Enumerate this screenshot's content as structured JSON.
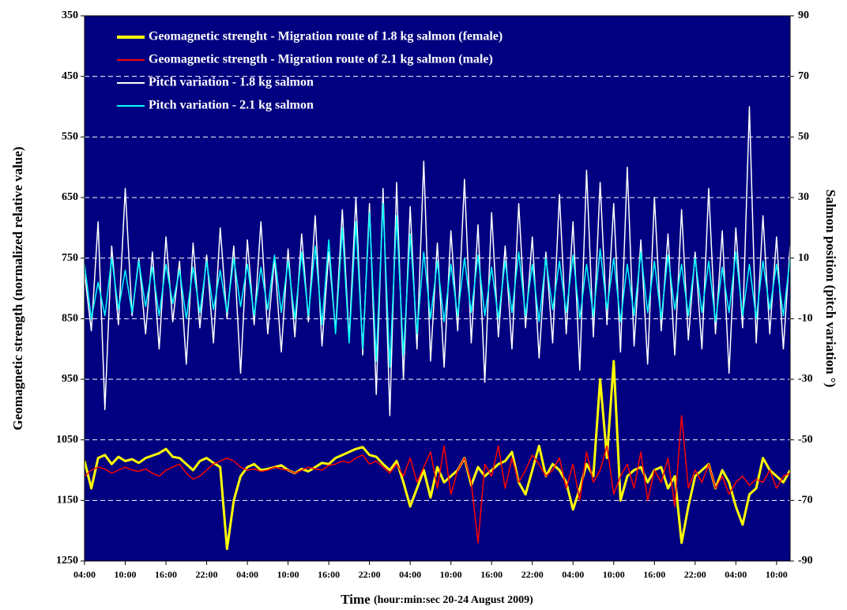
{
  "chart_data": {
    "type": "line",
    "ylabel": "Geomagnetic strength (normalized relative value)",
    "y2label": "Salmon position (pitch variation °)",
    "xlabel": "Time",
    "xlabel_detail": "(hour:min:sec  20-24 August 2009)",
    "background": "#000080",
    "grid": true,
    "legend": "upper-left",
    "xlim": [
      0,
      104
    ],
    "xticks": [
      {
        "value": 0,
        "label": "04:00"
      },
      {
        "value": 6,
        "label": "10:00"
      },
      {
        "value": 12,
        "label": "16:00"
      },
      {
        "value": 18,
        "label": "22:00"
      },
      {
        "value": 24,
        "label": "04:00"
      },
      {
        "value": 30,
        "label": "10:00"
      },
      {
        "value": 36,
        "label": "16:00"
      },
      {
        "value": 42,
        "label": "22:00"
      },
      {
        "value": 48,
        "label": "04:00"
      },
      {
        "value": 54,
        "label": "10:00"
      },
      {
        "value": 60,
        "label": "16:00"
      },
      {
        "value": 66,
        "label": "22:00"
      },
      {
        "value": 72,
        "label": "04:00"
      },
      {
        "value": 78,
        "label": "10:00"
      },
      {
        "value": 84,
        "label": "16:00"
      },
      {
        "value": 90,
        "label": "22:00"
      },
      {
        "value": 96,
        "label": "04:00"
      },
      {
        "value": 102,
        "label": "10:00"
      }
    ],
    "ylim": [
      1250,
      350
    ],
    "yticks": [
      350,
      450,
      550,
      650,
      750,
      850,
      950,
      1050,
      1150,
      1250
    ],
    "y2lim": [
      -90,
      90
    ],
    "y2ticks": [
      90,
      70,
      50,
      30,
      10,
      -10,
      -30,
      -50,
      -70,
      -90
    ],
    "x": [
      0,
      1,
      2,
      3,
      4,
      5,
      6,
      7,
      8,
      9,
      10,
      11,
      12,
      13,
      14,
      15,
      16,
      17,
      18,
      19,
      20,
      21,
      22,
      23,
      24,
      25,
      26,
      27,
      28,
      29,
      30,
      31,
      32,
      33,
      34,
      35,
      36,
      37,
      38,
      39,
      40,
      41,
      42,
      43,
      44,
      45,
      46,
      47,
      48,
      49,
      50,
      51,
      52,
      53,
      54,
      55,
      56,
      57,
      58,
      59,
      60,
      61,
      62,
      63,
      64,
      65,
      66,
      67,
      68,
      69,
      70,
      71,
      72,
      73,
      74,
      75,
      76,
      77,
      78,
      79,
      80,
      81,
      82,
      83,
      84,
      85,
      86,
      87,
      88,
      89,
      90,
      91,
      92,
      93,
      94,
      95,
      96,
      97,
      98,
      99,
      100,
      101,
      102,
      103,
      104
    ],
    "series": [
      {
        "name": "Geomagnetic strenght - Migration route of 1.8 kg salmon (female)",
        "color": "#ffff00",
        "values": [
          1085,
          1130,
          1080,
          1075,
          1090,
          1078,
          1085,
          1082,
          1088,
          1080,
          1076,
          1072,
          1065,
          1078,
          1080,
          1090,
          1100,
          1085,
          1080,
          1088,
          1095,
          1230,
          1150,
          1110,
          1095,
          1090,
          1100,
          1098,
          1095,
          1092,
          1100,
          1105,
          1098,
          1102,
          1095,
          1088,
          1090,
          1080,
          1075,
          1070,
          1065,
          1062,
          1075,
          1078,
          1090,
          1100,
          1085,
          1120,
          1160,
          1130,
          1100,
          1145,
          1095,
          1120,
          1110,
          1100,
          1080,
          1125,
          1095,
          1110,
          1100,
          1090,
          1085,
          1070,
          1120,
          1140,
          1100,
          1060,
          1110,
          1090,
          1100,
          1120,
          1165,
          1130,
          1090,
          1110,
          950,
          1080,
          920,
          1150,
          1110,
          1100,
          1095,
          1120,
          1100,
          1095,
          1130,
          1110,
          1220,
          1160,
          1110,
          1100,
          1090,
          1130,
          1100,
          1120,
          1160,
          1190,
          1140,
          1130,
          1080,
          1100,
          1110,
          1120,
          1100
        ]
      },
      {
        "name": "Geomagnetic strength - Migration route of 2.1 kg salmon (male)",
        "color": "#ff0000",
        "values": [
          1110,
          1100,
          1095,
          1098,
          1105,
          1100,
          1095,
          1100,
          1102,
          1098,
          1105,
          1110,
          1100,
          1095,
          1090,
          1105,
          1115,
          1110,
          1100,
          1090,
          1085,
          1080,
          1085,
          1095,
          1100,
          1098,
          1102,
          1100,
          1095,
          1098,
          1100,
          1105,
          1100,
          1095,
          1098,
          1100,
          1092,
          1090,
          1085,
          1088,
          1080,
          1075,
          1090,
          1085,
          1095,
          1105,
          1090,
          1110,
          1080,
          1120,
          1095,
          1070,
          1130,
          1060,
          1140,
          1100,
          1080,
          1120,
          1220,
          1090,
          1110,
          1060,
          1130,
          1080,
          1120,
          1100,
          1075,
          1090,
          1110,
          1100,
          1080,
          1130,
          1090,
          1150,
          1070,
          1120,
          1100,
          1060,
          1140,
          1110,
          1090,
          1130,
          1070,
          1150,
          1100,
          1120,
          1080,
          1160,
          1010,
          1130,
          1100,
          1120,
          1090,
          1130,
          1110,
          1140,
          1120,
          1110,
          1125,
          1115,
          1120,
          1100,
          1130,
          1110,
          1105
        ]
      },
      {
        "name": "Pitch variation - 1.8 kg salmon",
        "color": "#ffffff",
        "axis": "y2",
        "values": [
          5,
          -14,
          22,
          -40,
          14,
          -12,
          33,
          -9,
          10,
          -15,
          12,
          -20,
          17,
          -11,
          9,
          -25,
          15,
          -13,
          11,
          -18,
          20,
          -10,
          14,
          -28,
          16,
          -12,
          22,
          -15,
          10,
          -21,
          13,
          -16,
          18,
          -11,
          24,
          -19,
          12,
          -14,
          26,
          -17,
          30,
          -22,
          28,
          -35,
          33,
          -42,
          35,
          -30,
          27,
          -20,
          42,
          -24,
          15,
          -26,
          19,
          -14,
          36,
          -18,
          21,
          -31,
          25,
          -16,
          14,
          -20,
          28,
          -13,
          17,
          -23,
          12,
          -18,
          31,
          -15,
          22,
          -27,
          39,
          -16,
          35,
          -12,
          28,
          -21,
          40,
          -19,
          16,
          -25,
          30,
          -14,
          18,
          -22,
          26,
          -17,
          12,
          -20,
          33,
          -15,
          19,
          -28,
          20,
          -13,
          60,
          -18,
          24,
          -15,
          17,
          -20,
          14
        ]
      },
      {
        "name": "Pitch variation - 2.1 kg salmon",
        "color": "#00ffff",
        "axis": "y2",
        "values": [
          8,
          -10,
          2,
          -9,
          10,
          -7,
          6,
          -8,
          9,
          -6,
          7,
          -9,
          8,
          -5,
          6,
          -10,
          7,
          -8,
          9,
          -7,
          6,
          -8,
          10,
          -6,
          8,
          -9,
          7,
          -7,
          11,
          -8,
          9,
          -10,
          12,
          -9,
          14,
          -12,
          16,
          -15,
          20,
          -18,
          22,
          -20,
          25,
          -24,
          28,
          -26,
          24,
          -22,
          18,
          -15,
          12,
          -10,
          9,
          -11,
          8,
          -9,
          10,
          -8,
          11,
          -9,
          7,
          -10,
          9,
          -8,
          12,
          -9,
          8,
          -11,
          10,
          -7,
          9,
          -8,
          11,
          -10,
          8,
          -9,
          13,
          -7,
          10,
          -11,
          8,
          -9,
          12,
          -8,
          9,
          -10,
          11,
          -7,
          8,
          -9,
          10,
          -8,
          9,
          -11,
          7,
          -8,
          12,
          -9,
          8,
          -10,
          9,
          -7,
          8,
          -9,
          10
        ]
      }
    ]
  }
}
